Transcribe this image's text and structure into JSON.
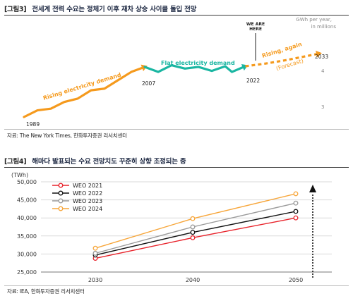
{
  "figure1": {
    "tag": "[그림3]",
    "title": "전세계 전력 수요는 정체기 이후 재차 상승 사이클 돌입 전망",
    "source": "자료: The New York Times, 한화투자증권 리서치센터",
    "unit_label_line1": "GWh per year,",
    "unit_label_line2": "in millions",
    "colors": {
      "rising": "#f59a1d",
      "flat": "#1ab6a2",
      "forecast": "#f59a1d"
    },
    "annotations": {
      "rising": "Rising electricity demand",
      "flat": "Flat electricity demand",
      "rising_again": "Rising, again",
      "forecast": "(Forecast)",
      "we_are_here_line1": "WE ARE",
      "we_are_here_line2": "HERE"
    },
    "year_labels": {
      "start": "1989",
      "flat_start": "2007",
      "now": "2022",
      "end": "2033"
    },
    "y_ticks": [
      "4",
      "3"
    ],
    "chart_data": {
      "type": "line",
      "title": "",
      "ylabel": "GWh per year, in millions",
      "series": [
        {
          "name": "Rising electricity demand",
          "x": [
            1989,
            1991,
            1993,
            1995,
            1997,
            1999,
            2001,
            2003,
            2005,
            2007
          ],
          "y": [
            2.6,
            2.8,
            2.85,
            3.05,
            3.15,
            3.4,
            3.45,
            3.7,
            3.95,
            4.1
          ]
        },
        {
          "name": "Flat electricity demand",
          "x": [
            2007,
            2009,
            2011,
            2013,
            2015,
            2017,
            2019,
            2020,
            2022
          ],
          "y": [
            4.1,
            3.95,
            4.15,
            4.05,
            4.1,
            3.98,
            4.12,
            3.95,
            4.12
          ]
        },
        {
          "name": "Rising, again (Forecast)",
          "x": [
            2022,
            2025,
            2028,
            2031,
            2033
          ],
          "y": [
            4.12,
            4.2,
            4.3,
            4.42,
            4.5
          ]
        }
      ]
    }
  },
  "figure2": {
    "tag": "[그림4]",
    "title": "해마다 발표되는 수요 전망치도 꾸준히 상향 조정되는 중",
    "source": "자료: IEA, 한화투자증권 리서치센터",
    "unit": "(TWh)",
    "chart_data": {
      "type": "line",
      "title": "",
      "xlabel": "",
      "ylabel": "TWh",
      "x": [
        2030,
        2040,
        2050
      ],
      "ylim": [
        25000,
        50000
      ],
      "yticks": [
        "50,000",
        "45,000",
        "40,000",
        "35,000",
        "30,000",
        "25,000"
      ],
      "xticks": [
        "2030",
        "2040",
        "2050"
      ],
      "legend_position": "top-left",
      "series": [
        {
          "name": "WEO 2021",
          "color": "#e8222a",
          "values": [
            28800,
            34500,
            40000
          ]
        },
        {
          "name": "WEO 2022",
          "color": "#111111",
          "values": [
            29700,
            36000,
            41800
          ]
        },
        {
          "name": "WEO 2023",
          "color": "#9a9a9a",
          "values": [
            30200,
            37500,
            44100
          ]
        },
        {
          "name": "WEO 2024",
          "color": "#f7a63a",
          "values": [
            31600,
            39800,
            46700
          ]
        }
      ]
    }
  }
}
